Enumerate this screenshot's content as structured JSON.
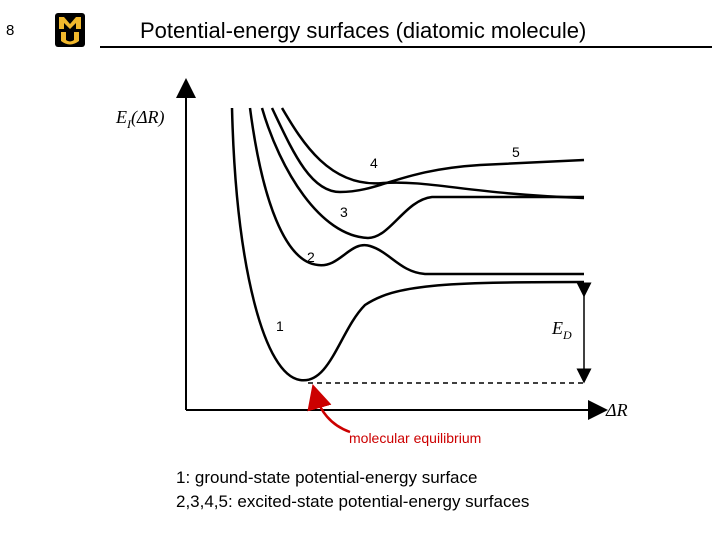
{
  "slide": {
    "number": "8",
    "title": "Potential-energy surfaces (diatomic molecule)"
  },
  "logo": {
    "icon": "mu-logo-icon",
    "letters": "MU",
    "color": "#000000",
    "accent": "#f1b82d"
  },
  "diagram": {
    "y_axis_label": {
      "main": "E",
      "sub": "I",
      "arg": "(ΔR)"
    },
    "x_axis_label": "ΔR",
    "dissociation_label": {
      "main": "E",
      "sub": "D"
    },
    "curve_labels": [
      "1",
      "2",
      "3",
      "4",
      "5"
    ],
    "annotation": "molecular equilibrium",
    "annotation_color": "#cc0000"
  },
  "legend": {
    "line1": "1: ground-state potential-energy surface",
    "line2": "2,3,4,5: excited-state potential-energy surfaces"
  }
}
